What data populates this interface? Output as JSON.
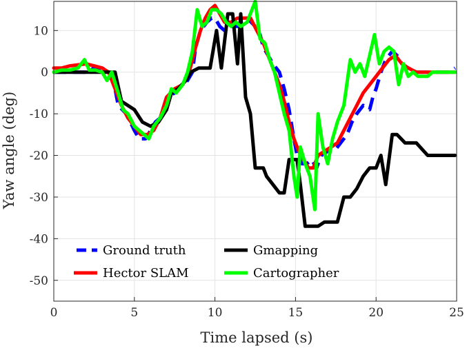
{
  "chart_data": {
    "type": "line",
    "xlabel": "Time lapsed (s)",
    "ylabel": "Yaw angle (deg)",
    "xlim": [
      0,
      25
    ],
    "ylim": [
      -55,
      17
    ],
    "xticks": [
      0,
      5,
      10,
      15,
      20,
      25
    ],
    "yticks": [
      10,
      0,
      -10,
      -20,
      -30,
      -40,
      -50
    ],
    "grid": true,
    "legend_position": "bottom-left",
    "series": [
      {
        "name": "Ground truth",
        "color": "#0000ff",
        "dash": true,
        "points": [
          [
            0,
            0
          ],
          [
            1,
            0
          ],
          [
            1.5,
            0
          ],
          [
            2,
            0
          ],
          [
            2.5,
            1
          ],
          [
            3,
            1
          ],
          [
            3.5,
            0
          ],
          [
            3.8,
            -4
          ],
          [
            4,
            -8
          ],
          [
            4.5,
            -10
          ],
          [
            5,
            -14
          ],
          [
            5.3,
            -16
          ],
          [
            5.7,
            -16
          ],
          [
            6,
            -14
          ],
          [
            6.3,
            -12
          ],
          [
            6.6,
            -11
          ],
          [
            7,
            -6
          ],
          [
            7.5,
            -5
          ],
          [
            8,
            -3
          ],
          [
            8.3,
            -2
          ],
          [
            8.6,
            0
          ],
          [
            8.8,
            6
          ],
          [
            9.1,
            10
          ],
          [
            9.5,
            12
          ],
          [
            9.8,
            13
          ],
          [
            10,
            13
          ],
          [
            10.3,
            11
          ],
          [
            10.6,
            10
          ],
          [
            11,
            11
          ],
          [
            11.5,
            11
          ],
          [
            12,
            13
          ],
          [
            12.5,
            11
          ],
          [
            12.8,
            9
          ],
          [
            13,
            6
          ],
          [
            13.3,
            4
          ],
          [
            13.6,
            2
          ],
          [
            14,
            0
          ],
          [
            14.3,
            -4
          ],
          [
            14.6,
            -9
          ],
          [
            14.9,
            -16
          ],
          [
            15.1,
            -20
          ],
          [
            15.4,
            -22
          ],
          [
            15.7,
            -22
          ],
          [
            16,
            -21
          ],
          [
            16.3,
            -23
          ],
          [
            16.6,
            -20
          ],
          [
            17,
            -19
          ],
          [
            17.4,
            -19
          ],
          [
            17.8,
            -17
          ],
          [
            18.2,
            -15
          ],
          [
            18.5,
            -12
          ],
          [
            18.8,
            -10
          ],
          [
            19.2,
            -8
          ],
          [
            19.6,
            -9
          ],
          [
            19.8,
            -6
          ],
          [
            20,
            -4
          ],
          [
            20.3,
            0
          ],
          [
            20.6,
            3
          ],
          [
            21,
            5
          ],
          [
            21.3,
            4
          ],
          [
            21.6,
            2
          ],
          [
            22,
            1
          ],
          [
            22.5,
            0
          ],
          [
            23,
            0
          ],
          [
            23.5,
            0
          ],
          [
            24,
            0
          ],
          [
            24.5,
            0
          ],
          [
            24.9,
            1
          ]
        ]
      },
      {
        "name": "Hector SLAM",
        "color": "#ff0000",
        "dash": false,
        "points": [
          [
            0,
            1
          ],
          [
            0.5,
            1
          ],
          [
            1,
            1.5
          ],
          [
            2,
            2
          ],
          [
            2.5,
            1.5
          ],
          [
            3,
            1
          ],
          [
            3.4,
            0
          ],
          [
            3.8,
            -4
          ],
          [
            4.2,
            -8
          ],
          [
            4.6,
            -11
          ],
          [
            5,
            -13
          ],
          [
            5.4,
            -15
          ],
          [
            5.8,
            -15
          ],
          [
            6.2,
            -14
          ],
          [
            6.6,
            -11
          ],
          [
            7,
            -6
          ],
          [
            7.5,
            -4
          ],
          [
            8,
            -3
          ],
          [
            8.4,
            0
          ],
          [
            8.8,
            6
          ],
          [
            9.1,
            10
          ],
          [
            9.4,
            13
          ],
          [
            9.7,
            15
          ],
          [
            10,
            16
          ],
          [
            10.3,
            14
          ],
          [
            10.6,
            12
          ],
          [
            11,
            12
          ],
          [
            11.4,
            13
          ],
          [
            11.8,
            13
          ],
          [
            12.2,
            13
          ],
          [
            12.6,
            10
          ],
          [
            13,
            7
          ],
          [
            13.4,
            3
          ],
          [
            13.7,
            0
          ],
          [
            14,
            -3
          ],
          [
            14.3,
            -7
          ],
          [
            14.6,
            -12
          ],
          [
            14.9,
            -16
          ],
          [
            15.2,
            -19
          ],
          [
            15.5,
            -21
          ],
          [
            15.8,
            -23
          ],
          [
            16.1,
            -23
          ],
          [
            16.4,
            -20
          ],
          [
            16.8,
            -19
          ],
          [
            17.2,
            -18
          ],
          [
            17.6,
            -17
          ],
          [
            18,
            -14
          ],
          [
            18.4,
            -11
          ],
          [
            18.8,
            -8
          ],
          [
            19.2,
            -5
          ],
          [
            19.6,
            -3
          ],
          [
            20,
            -1
          ],
          [
            20.4,
            1
          ],
          [
            20.8,
            3
          ],
          [
            21.2,
            4
          ],
          [
            21.6,
            2
          ],
          [
            22,
            1
          ],
          [
            22.5,
            0
          ],
          [
            23,
            0
          ],
          [
            23.5,
            0
          ],
          [
            24,
            0
          ],
          [
            24.5,
            0
          ],
          [
            24.9,
            0
          ]
        ]
      },
      {
        "name": "Gmapping",
        "color": "#000000",
        "dash": false,
        "points": [
          [
            0,
            0
          ],
          [
            3.8,
            0
          ],
          [
            4.2,
            -7
          ],
          [
            5,
            -9
          ],
          [
            5.5,
            -12
          ],
          [
            6,
            -13
          ],
          [
            6.5,
            -12
          ],
          [
            7,
            -9
          ],
          [
            7.3,
            -5
          ],
          [
            7.7,
            -4
          ],
          [
            8.2,
            -2
          ],
          [
            8.5,
            0
          ],
          [
            9,
            1
          ],
          [
            9.7,
            1
          ],
          [
            10.1,
            10
          ],
          [
            10.4,
            1
          ],
          [
            10.8,
            14
          ],
          [
            11.1,
            14
          ],
          [
            11.4,
            2
          ],
          [
            11.6,
            14
          ],
          [
            11.9,
            -6
          ],
          [
            12.2,
            -10
          ],
          [
            12.5,
            -23
          ],
          [
            13,
            -23
          ],
          [
            13.2,
            -25
          ],
          [
            13.6,
            -27
          ],
          [
            14,
            -29
          ],
          [
            14.3,
            -29
          ],
          [
            14.6,
            -21
          ],
          [
            15.1,
            -21
          ],
          [
            15.3,
            -27
          ],
          [
            15.6,
            -37
          ],
          [
            16,
            -37
          ],
          [
            16.4,
            -37
          ],
          [
            16.8,
            -36
          ],
          [
            17.6,
            -36
          ],
          [
            18,
            -30
          ],
          [
            18.4,
            -30
          ],
          [
            18.8,
            -28
          ],
          [
            19.2,
            -25
          ],
          [
            19.6,
            -23
          ],
          [
            20,
            -23
          ],
          [
            20.3,
            -20
          ],
          [
            20.6,
            -27
          ],
          [
            21,
            -15
          ],
          [
            21.3,
            -15
          ],
          [
            21.8,
            -17
          ],
          [
            22.5,
            -17
          ],
          [
            23.2,
            -20
          ],
          [
            23.6,
            -20
          ],
          [
            24.9,
            -20
          ]
        ]
      },
      {
        "name": "Cartographer",
        "color": "#00ff00",
        "dash": false,
        "points": [
          [
            0,
            0
          ],
          [
            0.5,
            0.5
          ],
          [
            1,
            0.5
          ],
          [
            1.5,
            1
          ],
          [
            1.9,
            3
          ],
          [
            2.2,
            0.5
          ],
          [
            2.6,
            0.5
          ],
          [
            3,
            0
          ],
          [
            3.3,
            -2
          ],
          [
            3.6,
            0
          ],
          [
            4,
            -5
          ],
          [
            4.3,
            -9
          ],
          [
            4.6,
            -10
          ],
          [
            5,
            -13
          ],
          [
            5.3,
            -14
          ],
          [
            5.6,
            -15
          ],
          [
            5.9,
            -16
          ],
          [
            6.2,
            -13
          ],
          [
            6.6,
            -11
          ],
          [
            7,
            -8
          ],
          [
            7.3,
            -4
          ],
          [
            7.6,
            -5
          ],
          [
            8,
            -3
          ],
          [
            8.3,
            0
          ],
          [
            8.6,
            5
          ],
          [
            8.9,
            15
          ],
          [
            9.2,
            11
          ],
          [
            9.5,
            12
          ],
          [
            9.8,
            15
          ],
          [
            10.1,
            15
          ],
          [
            10.4,
            14
          ],
          [
            10.7,
            12
          ],
          [
            11,
            11
          ],
          [
            11.3,
            12
          ],
          [
            11.6,
            11
          ],
          [
            12,
            12
          ],
          [
            12.3,
            15
          ],
          [
            12.5,
            17
          ],
          [
            12.8,
            8
          ],
          [
            13.1,
            7
          ],
          [
            13.4,
            3
          ],
          [
            13.7,
            0
          ],
          [
            14,
            -5
          ],
          [
            14.3,
            -10
          ],
          [
            14.6,
            -14
          ],
          [
            14.9,
            -25
          ],
          [
            15.1,
            -30
          ],
          [
            15.3,
            -18
          ],
          [
            15.6,
            -22
          ],
          [
            15.9,
            -25
          ],
          [
            16.2,
            -33
          ],
          [
            16.4,
            -10
          ],
          [
            16.7,
            -18
          ],
          [
            17,
            -22
          ],
          [
            17.3,
            -16
          ],
          [
            17.6,
            -12
          ],
          [
            18,
            -8
          ],
          [
            18.4,
            3
          ],
          [
            18.7,
            0
          ],
          [
            19,
            2
          ],
          [
            19.3,
            -1
          ],
          [
            19.6,
            4
          ],
          [
            19.9,
            9
          ],
          [
            20.2,
            2
          ],
          [
            20.5,
            5
          ],
          [
            20.8,
            6
          ],
          [
            21.1,
            5
          ],
          [
            21.4,
            -3
          ],
          [
            21.7,
            2
          ],
          [
            22,
            -1
          ],
          [
            22.3,
            0
          ],
          [
            22.6,
            -1
          ],
          [
            22.9,
            -1
          ],
          [
            23.2,
            -1
          ],
          [
            23.5,
            0
          ],
          [
            23.8,
            0
          ],
          [
            24.1,
            0
          ],
          [
            24.4,
            0
          ],
          [
            24.7,
            0
          ],
          [
            24.9,
            0
          ]
        ]
      }
    ]
  }
}
